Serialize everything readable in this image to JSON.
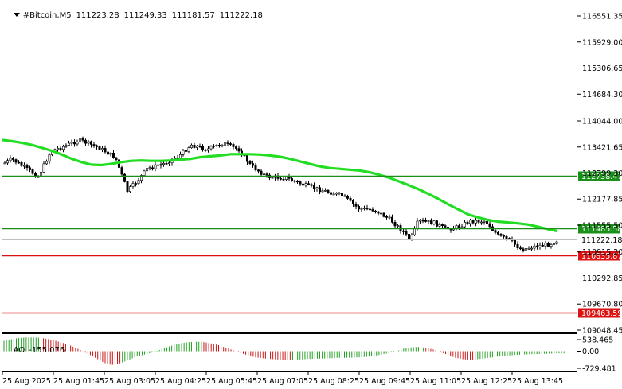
{
  "header": {
    "symbol": "#Bitcoin,M5",
    "open": "111223.28",
    "high": "111249.33",
    "low": "111181.57",
    "close": "111222.18"
  },
  "price_axis": {
    "ticks": [
      "116551.35",
      "115929.00",
      "115306.65",
      "114684.30",
      "114044.00",
      "113421.65",
      "112799.30",
      "112177.85",
      "111555.50",
      "110915.20",
      "110292.85",
      "109670.80",
      "109048.45"
    ]
  },
  "levels": [
    {
      "label": "112738.47",
      "kind": "green",
      "color": "#1a8f1a"
    },
    {
      "label": "111485.58",
      "kind": "green",
      "color": "#1a8f1a"
    },
    {
      "label": "110835.87",
      "kind": "red",
      "color": "#dd1111"
    },
    {
      "label": "109463.59",
      "kind": "red",
      "color": "#dd1111"
    }
  ],
  "current_price": {
    "label": "111222.18",
    "color": "#c0c0c0"
  },
  "ma_color": "#22dd22",
  "ao": {
    "label": "AO",
    "value": "-155.076",
    "ticks": [
      "538.465",
      "0.00",
      "-729.481"
    ],
    "up_color": "#1f9f1f",
    "down_color": "#c81414"
  },
  "time_axis": [
    "25 Aug 2025",
    "25 Aug 01:45",
    "25 Aug 03:05",
    "25 Aug 04:25",
    "25 Aug 05:45",
    "25 Aug 07:05",
    "25 Aug 08:25",
    "25 Aug 09:45",
    "25 Aug 11:05",
    "25 Aug 12:25",
    "25 Aug 13:45"
  ],
  "chart_data": {
    "type": "candlestick",
    "ma_close": [
      113590,
      113560,
      113520,
      113470,
      113400,
      113330,
      113240,
      113140,
      113060,
      113000,
      112990,
      113020,
      113060,
      113090,
      113100,
      113090,
      113090,
      113100,
      113120,
      113140,
      113180,
      113200,
      113220,
      113250,
      113250,
      113250,
      113240,
      113220,
      113190,
      113140,
      113080,
      113020,
      112960,
      112920,
      112900,
      112880,
      112860,
      112820,
      112760,
      112690,
      112600,
      112510,
      112410,
      112300,
      112180,
      112050,
      111930,
      111810,
      111740,
      111680,
      111640,
      111620,
      111600,
      111570,
      111520,
      111460,
      111410
    ],
    "ao_values": [
      480,
      560,
      610,
      640,
      640,
      620,
      560,
      480,
      380,
      260,
      110,
      -60,
      -220,
      -400,
      -560,
      -590,
      -480,
      -350,
      -220,
      -140,
      -60,
      60,
      180,
      300,
      380,
      420,
      440,
      420,
      360,
      280,
      160,
      40,
      -80,
      -180,
      -260,
      -300,
      -330,
      -350,
      -360,
      -360,
      -350,
      -330,
      -320,
      -310,
      -300,
      -280,
      -280,
      -270,
      -260,
      -240,
      -200,
      -140,
      -80,
      0,
      120,
      180,
      200,
      160,
      80,
      -40,
      -160,
      -280,
      -340,
      -360,
      -340,
      -300,
      -260,
      -220,
      -190,
      -160,
      -140,
      -130,
      -120,
      -110,
      -100,
      -90
    ]
  }
}
